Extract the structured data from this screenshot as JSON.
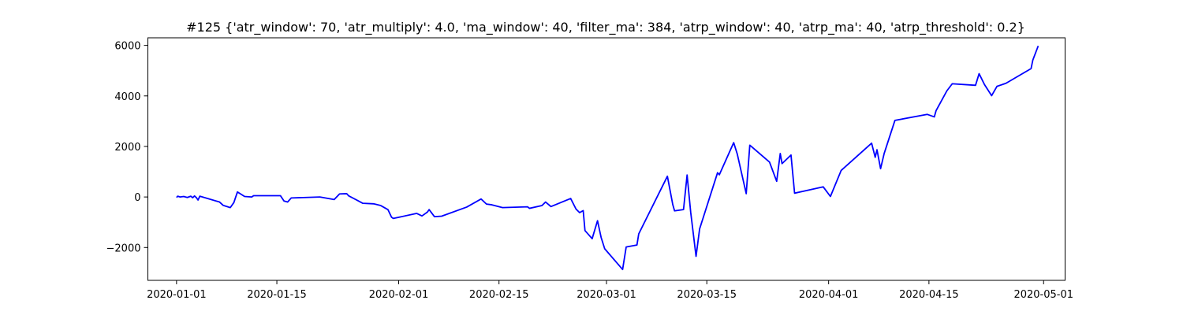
{
  "chart_data": {
    "type": "line",
    "title": "#125 {'atr_window': 70, 'atr_multiply': 4.0, 'ma_window': 40, 'filter_ma': 384, 'atrp_window': 40, 'atrp_ma': 40, 'atrp_threshold': 0.2}",
    "xlabel": "",
    "ylabel": "",
    "xlim": [
      "2019-12-28",
      "2020-05-04"
    ],
    "ylim": [
      -3300,
      6300
    ],
    "grid": false,
    "x_ticks": [
      "2020-01-01",
      "2020-01-15",
      "2020-02-01",
      "2020-02-15",
      "2020-03-01",
      "2020-03-15",
      "2020-04-01",
      "2020-04-15",
      "2020-05-01"
    ],
    "y_ticks": [
      -2000,
      0,
      2000,
      4000,
      6000
    ],
    "y_tick_labels": [
      "−2000",
      "0",
      "2000",
      "4000",
      "6000"
    ],
    "series": [
      {
        "color": "#0000ff",
        "points": [
          [
            "2020-01-01T00:00",
            -20
          ],
          [
            "2020-01-01T04:00",
            30
          ],
          [
            "2020-01-01T12:00",
            0
          ],
          [
            "2020-01-02T00:00",
            20
          ],
          [
            "2020-01-02T12:00",
            -20
          ],
          [
            "2020-01-03T00:00",
            30
          ],
          [
            "2020-01-03T06:00",
            -30
          ],
          [
            "2020-01-03T12:00",
            40
          ],
          [
            "2020-01-03T18:00",
            -20
          ],
          [
            "2020-01-04T00:00",
            -120
          ],
          [
            "2020-01-04T06:00",
            30
          ],
          [
            "2020-01-07T00:00",
            -200
          ],
          [
            "2020-01-07T12:00",
            -330
          ],
          [
            "2020-01-08T12:00",
            -420
          ],
          [
            "2020-01-09T00:00",
            -220
          ],
          [
            "2020-01-09T12:00",
            200
          ],
          [
            "2020-01-10T12:00",
            20
          ],
          [
            "2020-01-11T12:00",
            0
          ],
          [
            "2020-01-11T18:00",
            50
          ],
          [
            "2020-01-15T12:00",
            50
          ],
          [
            "2020-01-16T00:00",
            -160
          ],
          [
            "2020-01-16T12:00",
            -200
          ],
          [
            "2020-01-17T00:00",
            -40
          ],
          [
            "2020-01-21T00:00",
            0
          ],
          [
            "2020-01-23T00:00",
            -100
          ],
          [
            "2020-01-23T18:00",
            120
          ],
          [
            "2020-01-24T18:00",
            130
          ],
          [
            "2020-01-25T00:00",
            50
          ],
          [
            "2020-01-27T00:00",
            -250
          ],
          [
            "2020-01-28T12:00",
            -270
          ],
          [
            "2020-01-29T12:00",
            -340
          ],
          [
            "2020-01-30T12:00",
            -500
          ],
          [
            "2020-01-31T00:00",
            -800
          ],
          [
            "2020-01-31T06:00",
            -850
          ],
          [
            "2020-02-03T12:00",
            -650
          ],
          [
            "2020-02-04T06:00",
            -750
          ],
          [
            "2020-02-05T00:00",
            -600
          ],
          [
            "2020-02-05T06:00",
            -500
          ],
          [
            "2020-02-06T00:00",
            -780
          ],
          [
            "2020-02-07T00:00",
            -760
          ],
          [
            "2020-02-10T12:00",
            -400
          ],
          [
            "2020-02-12T12:00",
            -80
          ],
          [
            "2020-02-13T06:00",
            -280
          ],
          [
            "2020-02-14T00:00",
            -310
          ],
          [
            "2020-02-15T12:00",
            -420
          ],
          [
            "2020-02-19T00:00",
            -390
          ],
          [
            "2020-02-19T06:00",
            -450
          ],
          [
            "2020-02-21T00:00",
            -340
          ],
          [
            "2020-02-21T12:00",
            -200
          ],
          [
            "2020-02-22T06:00",
            -380
          ],
          [
            "2020-02-25T00:00",
            -60
          ],
          [
            "2020-02-25T18:00",
            -480
          ],
          [
            "2020-02-26T06:00",
            -620
          ],
          [
            "2020-02-26T18:00",
            -540
          ],
          [
            "2020-02-27T00:00",
            -1330
          ],
          [
            "2020-02-28T00:00",
            -1650
          ],
          [
            "2020-02-28T18:00",
            -940
          ],
          [
            "2020-02-29T06:00",
            -1600
          ],
          [
            "2020-02-29T18:00",
            -2050
          ],
          [
            "2020-03-03T06:00",
            -2870
          ],
          [
            "2020-03-03T18:00",
            -1980
          ],
          [
            "2020-03-05T06:00",
            -1900
          ],
          [
            "2020-03-05T12:00",
            -1460
          ],
          [
            "2020-03-09T12:00",
            820
          ],
          [
            "2020-03-10T06:00",
            -300
          ],
          [
            "2020-03-10T12:00",
            -550
          ],
          [
            "2020-03-11T18:00",
            -500
          ],
          [
            "2020-03-12T06:00",
            870
          ],
          [
            "2020-03-12T18:00",
            -600
          ],
          [
            "2020-03-13T12:00",
            -2350
          ],
          [
            "2020-03-14T00:00",
            -1260
          ],
          [
            "2020-03-16T12:00",
            960
          ],
          [
            "2020-03-16T18:00",
            880
          ],
          [
            "2020-03-18T18:00",
            2150
          ],
          [
            "2020-03-19T06:00",
            1700
          ],
          [
            "2020-03-20T12:00",
            130
          ],
          [
            "2020-03-21T00:00",
            2050
          ],
          [
            "2020-03-23T18:00",
            1380
          ],
          [
            "2020-03-24T18:00",
            620
          ],
          [
            "2020-03-25T06:00",
            1720
          ],
          [
            "2020-03-25T12:00",
            1320
          ],
          [
            "2020-03-26T18:00",
            1660
          ],
          [
            "2020-03-27T06:00",
            150
          ],
          [
            "2020-03-31T06:00",
            400
          ],
          [
            "2020-04-01T06:00",
            20
          ],
          [
            "2020-04-02T18:00",
            1050
          ],
          [
            "2020-04-07T00:00",
            2130
          ],
          [
            "2020-04-07T12:00",
            1570
          ],
          [
            "2020-04-07T18:00",
            1870
          ],
          [
            "2020-04-08T06:00",
            1120
          ],
          [
            "2020-04-08T18:00",
            1720
          ],
          [
            "2020-04-10T06:00",
            3030
          ],
          [
            "2020-04-14T18:00",
            3270
          ],
          [
            "2020-04-15T18:00",
            3170
          ],
          [
            "2020-04-16T00:00",
            3420
          ],
          [
            "2020-04-17T12:00",
            4200
          ],
          [
            "2020-04-18T06:00",
            4480
          ],
          [
            "2020-04-21T12:00",
            4420
          ],
          [
            "2020-04-22T00:00",
            4880
          ],
          [
            "2020-04-22T18:00",
            4450
          ],
          [
            "2020-04-23T18:00",
            4010
          ],
          [
            "2020-04-24T12:00",
            4380
          ],
          [
            "2020-04-25T18:00",
            4500
          ],
          [
            "2020-04-29T06:00",
            5080
          ],
          [
            "2020-04-29T12:00",
            5420
          ],
          [
            "2020-04-30T06:00",
            5980
          ]
        ]
      }
    ]
  }
}
